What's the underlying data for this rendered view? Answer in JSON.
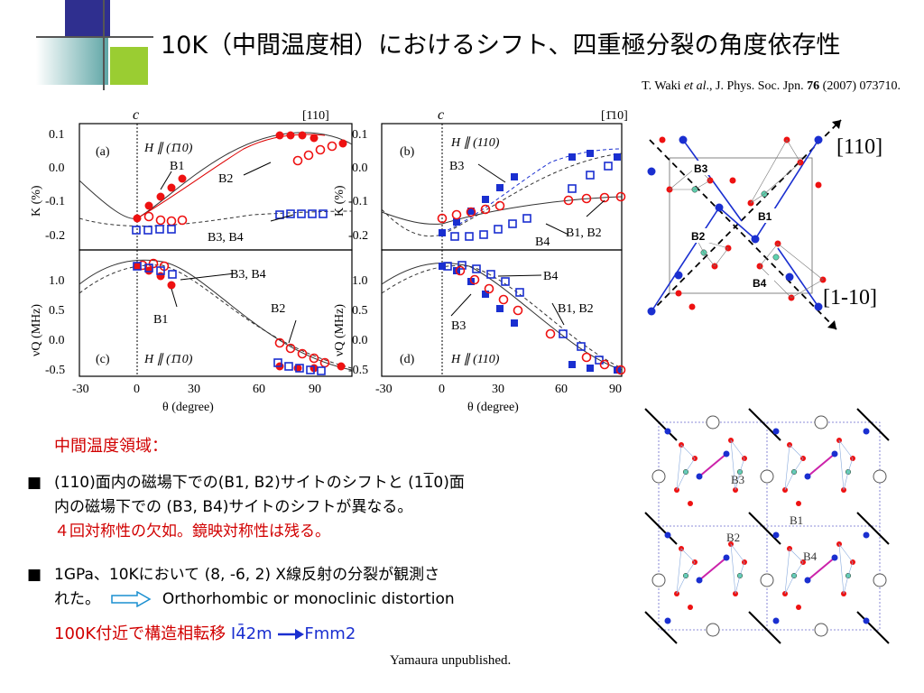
{
  "title": "10K（中間温度相）におけるシフト、四重極分裂の角度依存性",
  "citation": {
    "authors": "T. Waki",
    "etal": "et al",
    "journal_pre": "., J. Phys. Soc. Jpn.",
    "volume": "76",
    "rest": "(2007) 073710."
  },
  "panels": {
    "a": {
      "label": "(a)",
      "top_left": "c",
      "top_right": "[110]",
      "field": "H ∥ (1̄10)",
      "ylabel": "K (%)",
      "annotations": [
        "B1",
        "B2",
        "B3, B4"
      ]
    },
    "b": {
      "label": "(b)",
      "top_left": "c",
      "top_right": "[1̄10]",
      "field": "H ∥ (110)",
      "ylabel": "K (%)",
      "annotations": [
        "B3",
        "B4",
        "B1, B2"
      ]
    },
    "c": {
      "label": "(c)",
      "field": "H ∥ (1̄10)",
      "ylabel": "νQ (MHz)",
      "annotations": [
        "B3, B4",
        "B1",
        "B2"
      ]
    },
    "d": {
      "label": "(d)",
      "field": "H ∥ (110)",
      "ylabel": "νQ (MHz)",
      "annotations": [
        "B4",
        "B1, B2",
        "B3"
      ]
    },
    "xlabel": "θ (degree)",
    "xticks": [
      "-30",
      "0",
      "30",
      "60",
      "90"
    ],
    "k_ticks": [
      "0.1",
      "0.0",
      "-0.1",
      "-0.2"
    ],
    "nu_ticks": [
      "1.0",
      "0.5",
      "0.0",
      "-0.5"
    ]
  },
  "structure_top": {
    "label_110": "[110]",
    "label_1m10": "[1-10]",
    "sites": [
      "B3",
      "B1",
      "B2",
      "B4"
    ]
  },
  "structure_bottom": {
    "sites": [
      "B3",
      "B1",
      "B2",
      "B4"
    ]
  },
  "section_label": "中間温度領域：",
  "bullet1": {
    "mark": "■",
    "line1": "(110)面内の磁場下での(B1, B2)サイトのシフトと (1",
    "bar_one": "1",
    "line1_end": "0)面",
    "line2": "内の磁場下での (B3, B4)サイトのシフトが異なる。",
    "line3": "４回対称性の欠如。鏡映対称性は残る。"
  },
  "bullet2": {
    "mark": "■",
    "line1": "1GPa、10Kにおいて (8, -6, 2) X線反射の分裂が観測さ",
    "line2_a": "れた。",
    "line2_b": "Orthorhombic or monoclinic distortion"
  },
  "bottom_line": {
    "text": "100K付近で構造相転移",
    "from": "I4̄2m",
    "to": "Fmm2"
  },
  "attribution": "Yamaura unpublished."
}
